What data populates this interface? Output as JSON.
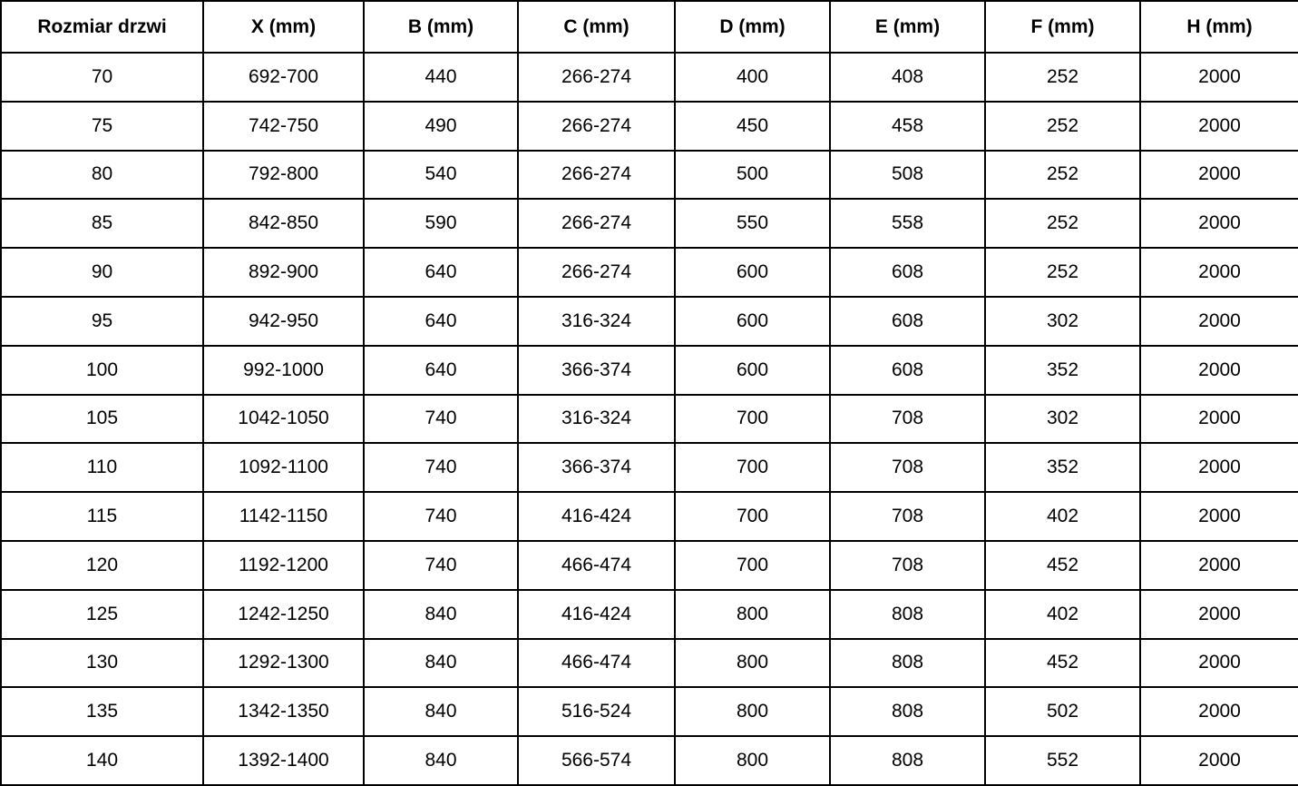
{
  "table": {
    "headers": [
      "Rozmiar drzwi",
      "X (mm)",
      "B (mm)",
      "C (mm)",
      "D (mm)",
      "E (mm)",
      "F (mm)",
      "H (mm)"
    ],
    "rows": [
      [
        "70",
        "692-700",
        "440",
        "266-274",
        "400",
        "408",
        "252",
        "2000"
      ],
      [
        "75",
        "742-750",
        "490",
        "266-274",
        "450",
        "458",
        "252",
        "2000"
      ],
      [
        "80",
        "792-800",
        "540",
        "266-274",
        "500",
        "508",
        "252",
        "2000"
      ],
      [
        "85",
        "842-850",
        "590",
        "266-274",
        "550",
        "558",
        "252",
        "2000"
      ],
      [
        "90",
        "892-900",
        "640",
        "266-274",
        "600",
        "608",
        "252",
        "2000"
      ],
      [
        "95",
        "942-950",
        "640",
        "316-324",
        "600",
        "608",
        "302",
        "2000"
      ],
      [
        "100",
        "992-1000",
        "640",
        "366-374",
        "600",
        "608",
        "352",
        "2000"
      ],
      [
        "105",
        "1042-1050",
        "740",
        "316-324",
        "700",
        "708",
        "302",
        "2000"
      ],
      [
        "110",
        "1092-1100",
        "740",
        "366-374",
        "700",
        "708",
        "352",
        "2000"
      ],
      [
        "115",
        "1142-1150",
        "740",
        "416-424",
        "700",
        "708",
        "402",
        "2000"
      ],
      [
        "120",
        "1192-1200",
        "740",
        "466-474",
        "700",
        "708",
        "452",
        "2000"
      ],
      [
        "125",
        "1242-1250",
        "840",
        "416-424",
        "800",
        "808",
        "402",
        "2000"
      ],
      [
        "130",
        "1292-1300",
        "840",
        "466-474",
        "800",
        "808",
        "452",
        "2000"
      ],
      [
        "135",
        "1342-1350",
        "840",
        "516-524",
        "800",
        "808",
        "502",
        "2000"
      ],
      [
        "140",
        "1392-1400",
        "840",
        "566-574",
        "800",
        "808",
        "552",
        "2000"
      ]
    ]
  },
  "colors": {
    "border": "#000000",
    "text": "#000000",
    "background": "#ffffff"
  },
  "chart_data": {
    "type": "table",
    "title": "",
    "columns": [
      "Rozmiar drzwi",
      "X (mm)",
      "B (mm)",
      "C (mm)",
      "D (mm)",
      "E (mm)",
      "F (mm)",
      "H (mm)"
    ],
    "rows": [
      [
        "70",
        "692-700",
        "440",
        "266-274",
        "400",
        "408",
        "252",
        "2000"
      ],
      [
        "75",
        "742-750",
        "490",
        "266-274",
        "450",
        "458",
        "252",
        "2000"
      ],
      [
        "80",
        "792-800",
        "540",
        "266-274",
        "500",
        "508",
        "252",
        "2000"
      ],
      [
        "85",
        "842-850",
        "590",
        "266-274",
        "550",
        "558",
        "252",
        "2000"
      ],
      [
        "90",
        "892-900",
        "640",
        "266-274",
        "600",
        "608",
        "252",
        "2000"
      ],
      [
        "95",
        "942-950",
        "640",
        "316-324",
        "600",
        "608",
        "302",
        "2000"
      ],
      [
        "100",
        "992-1000",
        "640",
        "366-374",
        "600",
        "608",
        "352",
        "2000"
      ],
      [
        "105",
        "1042-1050",
        "740",
        "316-324",
        "700",
        "708",
        "302",
        "2000"
      ],
      [
        "110",
        "1092-1100",
        "740",
        "366-374",
        "700",
        "708",
        "352",
        "2000"
      ],
      [
        "115",
        "1142-1150",
        "740",
        "416-424",
        "700",
        "708",
        "402",
        "2000"
      ],
      [
        "120",
        "1192-1200",
        "740",
        "466-474",
        "700",
        "708",
        "452",
        "2000"
      ],
      [
        "125",
        "1242-1250",
        "840",
        "416-424",
        "800",
        "808",
        "402",
        "2000"
      ],
      [
        "130",
        "1292-1300",
        "840",
        "466-474",
        "800",
        "808",
        "452",
        "2000"
      ],
      [
        "135",
        "1342-1350",
        "840",
        "516-524",
        "800",
        "808",
        "502",
        "2000"
      ],
      [
        "140",
        "1392-1400",
        "840",
        "566-574",
        "800",
        "808",
        "552",
        "2000"
      ]
    ]
  }
}
